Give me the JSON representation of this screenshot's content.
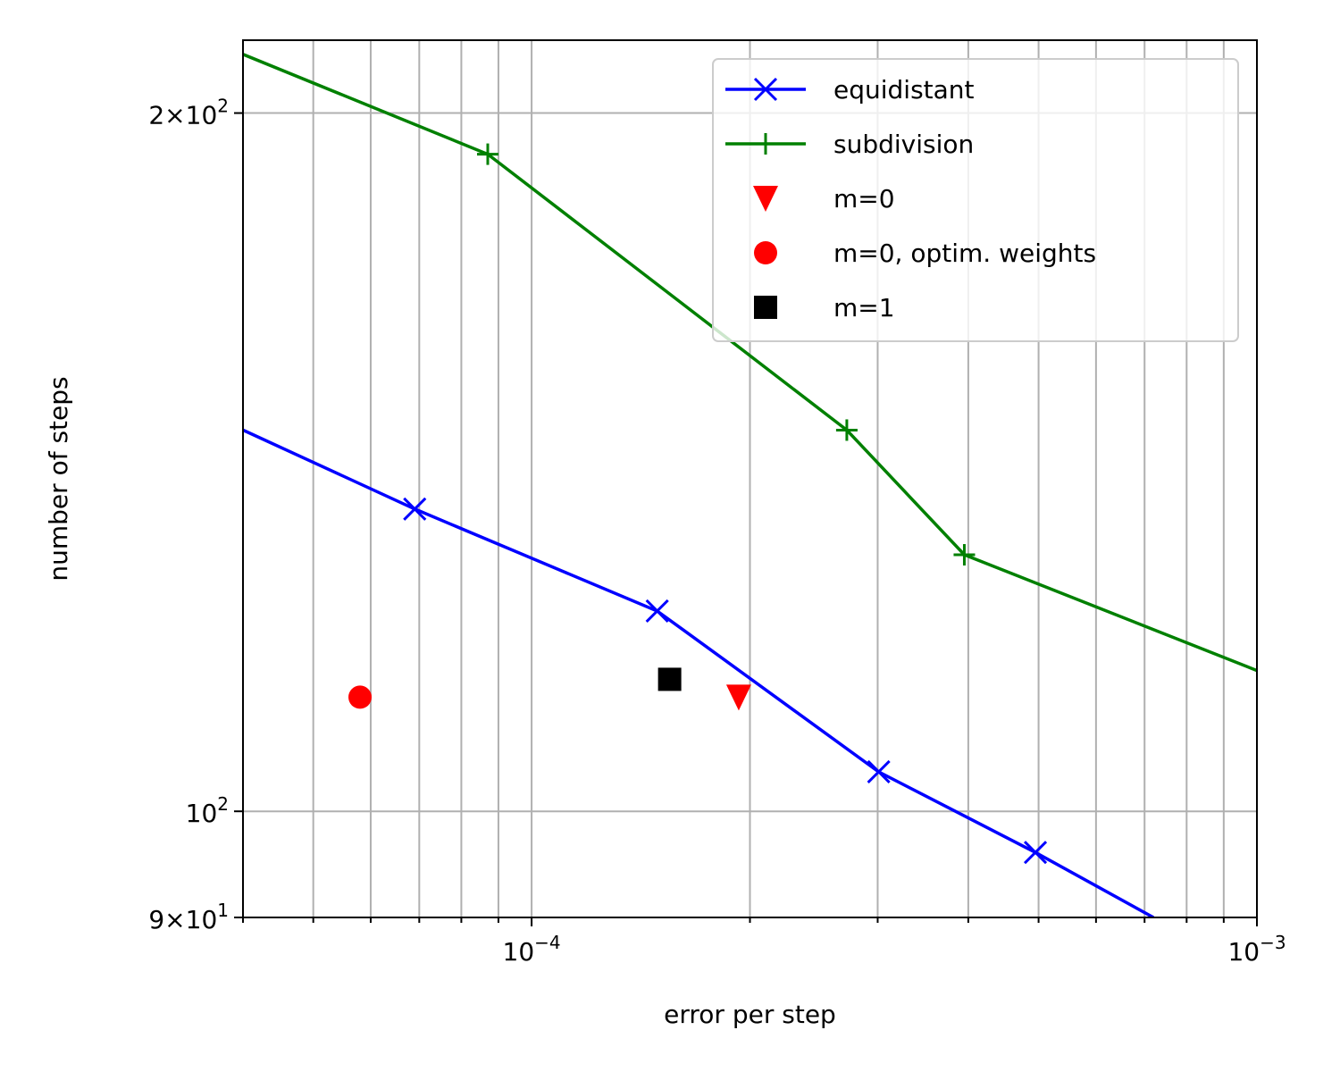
{
  "chart_data": {
    "type": "line",
    "title": "",
    "xlabel": "error per step",
    "ylabel": "number of steps",
    "xscale": "log",
    "yscale": "log",
    "xlim": [
      4e-05,
      0.001
    ],
    "ylim": [
      90,
      215
    ],
    "grid": "both (major and minor)",
    "legend_position": "upper-right",
    "x_ticks": [
      {
        "value": 0.0001,
        "base": "10",
        "exp": "−4"
      },
      {
        "value": 0.001,
        "base": "10",
        "exp": "−3"
      }
    ],
    "y_ticks": [
      {
        "value": 90,
        "base": "9×10",
        "exp": "1"
      },
      {
        "value": 100,
        "base": "10",
        "exp": "2"
      },
      {
        "value": 200,
        "base": "2×10",
        "exp": "2"
      }
    ],
    "series": [
      {
        "name": "equidistant",
        "color": "#0000ff",
        "marker": "x",
        "line": true,
        "points": [
          {
            "x": 4e-05,
            "y": 146
          },
          {
            "x": 6.9e-05,
            "y": 135
          },
          {
            "x": 0.000149,
            "y": 122
          },
          {
            "x": 0.000301,
            "y": 104
          },
          {
            "x": 0.000495,
            "y": 96
          },
          {
            "x": 0.00072,
            "y": 90
          }
        ]
      },
      {
        "name": "subdivision",
        "color": "#008000",
        "marker": "+",
        "line": true,
        "points": [
          {
            "x": 4e-05,
            "y": 212
          },
          {
            "x": 8.7e-05,
            "y": 192
          },
          {
            "x": 0.000272,
            "y": 146
          },
          {
            "x": 0.000395,
            "y": 129
          },
          {
            "x": 0.001,
            "y": 115
          }
        ]
      },
      {
        "name": "m=0",
        "color": "#ff0000",
        "marker": "triangle-down",
        "line": false,
        "points": [
          {
            "x": 0.000193,
            "y": 112
          }
        ]
      },
      {
        "name": "m=0, optim. weights",
        "color": "#ff0000",
        "marker": "circle",
        "line": false,
        "points": [
          {
            "x": 5.8e-05,
            "y": 112
          }
        ]
      },
      {
        "name": "m=1",
        "color": "#000000",
        "marker": "square",
        "line": false,
        "points": [
          {
            "x": 0.000155,
            "y": 114
          }
        ]
      }
    ]
  }
}
